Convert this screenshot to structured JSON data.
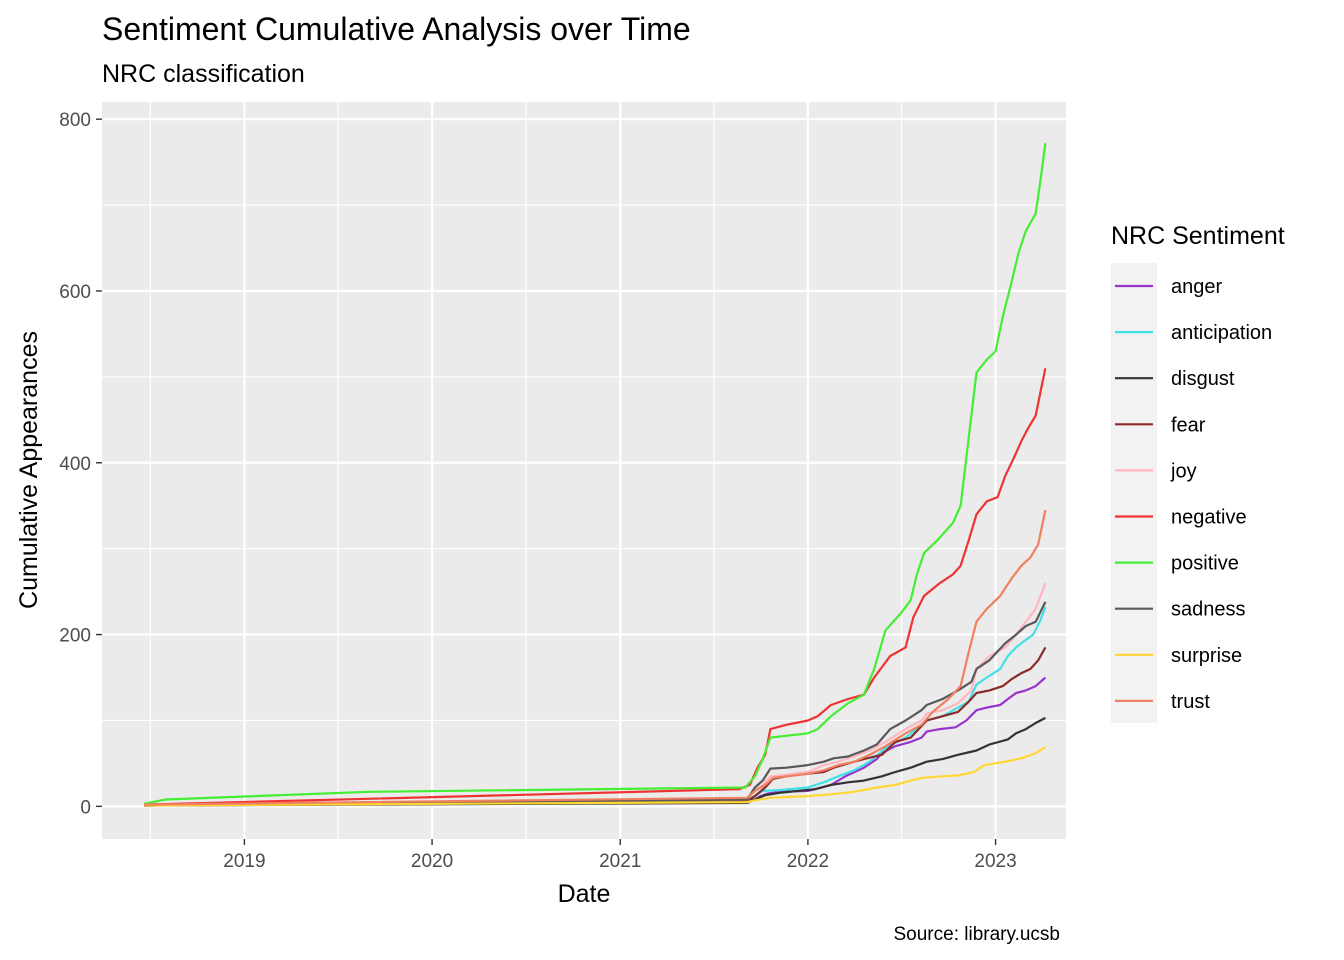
{
  "chart_data": {
    "type": "line",
    "title": "Sentiment Cumulative Analysis over Time",
    "subtitle": "NRC classification",
    "xlabel": "Date",
    "ylabel": "Cumulative Appearances",
    "caption": "Source: library.ucsb",
    "legend_title": "NRC Sentiment",
    "legend_position": "right",
    "grid": true,
    "x_type": "date",
    "xlim": [
      "2018-03-30",
      "2023-05-18"
    ],
    "ylim": [
      -38,
      820
    ],
    "x_ticks": [
      "2019-01-01",
      "2020-01-01",
      "2021-01-01",
      "2022-01-01",
      "2023-01-01"
    ],
    "x_tick_labels": [
      "2019",
      "2020",
      "2021",
      "2022",
      "2023"
    ],
    "y_ticks": [
      0,
      200,
      400,
      600,
      800
    ],
    "y_tick_labels": [
      "0",
      "200",
      "400",
      "600",
      "800"
    ],
    "series": [
      {
        "name": "anger",
        "color": "#9932CC",
        "points": [
          [
            "2018-06-20",
            1
          ],
          [
            "2021-09-05",
            6
          ],
          [
            "2021-09-20",
            8
          ],
          [
            "2021-10-01",
            12
          ],
          [
            "2021-10-15",
            15
          ],
          [
            "2021-11-10",
            17
          ],
          [
            "2022-01-01",
            18
          ],
          [
            "2022-02-15",
            25
          ],
          [
            "2022-03-15",
            35
          ],
          [
            "2022-04-20",
            45
          ],
          [
            "2022-05-15",
            55
          ],
          [
            "2022-05-25",
            62
          ],
          [
            "2022-06-20",
            70
          ],
          [
            "2022-07-20",
            75
          ],
          [
            "2022-08-10",
            80
          ],
          [
            "2022-08-20",
            87
          ],
          [
            "2022-09-15",
            90
          ],
          [
            "2022-10-15",
            92
          ],
          [
            "2022-11-05",
            100
          ],
          [
            "2022-11-25",
            112
          ],
          [
            "2022-12-15",
            115
          ],
          [
            "2023-01-10",
            118
          ],
          [
            "2023-01-25",
            125
          ],
          [
            "2023-02-10",
            132
          ],
          [
            "2023-03-01",
            135
          ],
          [
            "2023-03-20",
            140
          ],
          [
            "2023-04-08",
            150
          ]
        ]
      },
      {
        "name": "anticipation",
        "color": "#40E0E8",
        "points": [
          [
            "2018-06-20",
            2
          ],
          [
            "2021-09-05",
            8
          ],
          [
            "2021-09-20",
            12
          ],
          [
            "2021-10-05",
            18
          ],
          [
            "2021-11-10",
            19
          ],
          [
            "2022-01-01",
            22
          ],
          [
            "2022-02-01",
            28
          ],
          [
            "2022-03-01",
            35
          ],
          [
            "2022-04-01",
            42
          ],
          [
            "2022-05-01",
            52
          ],
          [
            "2022-06-01",
            68
          ],
          [
            "2022-07-10",
            80
          ],
          [
            "2022-08-10",
            95
          ],
          [
            "2022-08-20",
            100
          ],
          [
            "2022-09-20",
            105
          ],
          [
            "2022-10-20",
            115
          ],
          [
            "2022-11-10",
            122
          ],
          [
            "2022-11-25",
            142
          ],
          [
            "2022-12-15",
            150
          ],
          [
            "2023-01-10",
            160
          ],
          [
            "2023-01-25",
            175
          ],
          [
            "2023-02-10",
            185
          ],
          [
            "2023-02-25",
            192
          ],
          [
            "2023-03-15",
            200
          ],
          [
            "2023-03-28",
            215
          ],
          [
            "2023-04-08",
            232
          ]
        ]
      },
      {
        "name": "disgust",
        "color": "#333333",
        "points": [
          [
            "2018-06-20",
            1
          ],
          [
            "2021-09-05",
            4
          ],
          [
            "2021-09-20",
            8
          ],
          [
            "2021-10-10",
            13
          ],
          [
            "2021-11-10",
            16
          ],
          [
            "2022-01-15",
            20
          ],
          [
            "2022-02-15",
            25
          ],
          [
            "2022-03-20",
            28
          ],
          [
            "2022-04-20",
            30
          ],
          [
            "2022-05-25",
            35
          ],
          [
            "2022-06-20",
            40
          ],
          [
            "2022-07-20",
            45
          ],
          [
            "2022-08-20",
            52
          ],
          [
            "2022-09-20",
            55
          ],
          [
            "2022-10-20",
            60
          ],
          [
            "2022-11-25",
            65
          ],
          [
            "2022-12-20",
            72
          ],
          [
            "2023-01-25",
            78
          ],
          [
            "2023-02-10",
            85
          ],
          [
            "2023-03-01",
            90
          ],
          [
            "2023-03-20",
            97
          ],
          [
            "2023-04-08",
            103
          ]
        ]
      },
      {
        "name": "fear",
        "color": "#8B2A2A",
        "points": [
          [
            "2018-06-20",
            1
          ],
          [
            "2021-09-05",
            6
          ],
          [
            "2021-09-20",
            12
          ],
          [
            "2021-10-10",
            22
          ],
          [
            "2021-10-25",
            32
          ],
          [
            "2021-11-20",
            35
          ],
          [
            "2022-01-01",
            38
          ],
          [
            "2022-02-01",
            40
          ],
          [
            "2022-02-20",
            45
          ],
          [
            "2022-03-20",
            50
          ],
          [
            "2022-04-20",
            55
          ],
          [
            "2022-05-25",
            60
          ],
          [
            "2022-06-20",
            75
          ],
          [
            "2022-07-20",
            80
          ],
          [
            "2022-08-20",
            100
          ],
          [
            "2022-09-20",
            105
          ],
          [
            "2022-10-20",
            110
          ],
          [
            "2022-11-10",
            122
          ],
          [
            "2022-11-25",
            132
          ],
          [
            "2022-12-20",
            135
          ],
          [
            "2023-01-15",
            140
          ],
          [
            "2023-02-01",
            148
          ],
          [
            "2023-02-20",
            155
          ],
          [
            "2023-03-10",
            160
          ],
          [
            "2023-03-25",
            170
          ],
          [
            "2023-04-08",
            185
          ]
        ]
      },
      {
        "name": "joy",
        "color": "#FFB6C1",
        "points": [
          [
            "2018-06-20",
            2
          ],
          [
            "2021-09-05",
            8
          ],
          [
            "2021-09-20",
            18
          ],
          [
            "2021-10-05",
            25
          ],
          [
            "2021-10-20",
            35
          ],
          [
            "2021-11-20",
            37
          ],
          [
            "2022-01-01",
            40
          ],
          [
            "2022-02-01",
            48
          ],
          [
            "2022-03-01",
            52
          ],
          [
            "2022-04-01",
            58
          ],
          [
            "2022-05-01",
            65
          ],
          [
            "2022-06-01",
            75
          ],
          [
            "2022-07-10",
            90
          ],
          [
            "2022-08-10",
            100
          ],
          [
            "2022-08-20",
            108
          ],
          [
            "2022-09-20",
            112
          ],
          [
            "2022-10-20",
            120
          ],
          [
            "2022-11-15",
            135
          ],
          [
            "2022-11-25",
            160
          ],
          [
            "2022-12-20",
            175
          ],
          [
            "2023-01-20",
            185
          ],
          [
            "2023-02-10",
            200
          ],
          [
            "2023-03-01",
            215
          ],
          [
            "2023-03-20",
            230
          ],
          [
            "2023-04-08",
            260
          ]
        ]
      },
      {
        "name": "negative",
        "color": "#EE3333",
        "points": [
          [
            "2018-06-20",
            2
          ],
          [
            "2021-08-20",
            20
          ],
          [
            "2021-09-10",
            25
          ],
          [
            "2021-09-25",
            45
          ],
          [
            "2021-10-10",
            60
          ],
          [
            "2021-10-20",
            90
          ],
          [
            "2021-11-20",
            95
          ],
          [
            "2022-01-01",
            100
          ],
          [
            "2022-01-20",
            105
          ],
          [
            "2022-02-15",
            118
          ],
          [
            "2022-03-20",
            125
          ],
          [
            "2022-04-20",
            130
          ],
          [
            "2022-05-10",
            150
          ],
          [
            "2022-06-10",
            175
          ],
          [
            "2022-07-10",
            185
          ],
          [
            "2022-07-25",
            220
          ],
          [
            "2022-08-15",
            245
          ],
          [
            "2022-09-15",
            260
          ],
          [
            "2022-10-10",
            270
          ],
          [
            "2022-10-25",
            280
          ],
          [
            "2022-11-10",
            310
          ],
          [
            "2022-11-25",
            340
          ],
          [
            "2022-12-15",
            355
          ],
          [
            "2023-01-05",
            360
          ],
          [
            "2023-01-20",
            385
          ],
          [
            "2023-02-05",
            405
          ],
          [
            "2023-02-20",
            425
          ],
          [
            "2023-03-05",
            440
          ],
          [
            "2023-03-20",
            455
          ],
          [
            "2023-04-01",
            490
          ],
          [
            "2023-04-08",
            510
          ]
        ]
      },
      {
        "name": "positive",
        "color": "#44EE33",
        "points": [
          [
            "2018-06-20",
            3
          ],
          [
            "2018-08-01",
            8
          ],
          [
            "2019-09-01",
            17
          ],
          [
            "2021-09-01",
            22
          ],
          [
            "2021-09-20",
            35
          ],
          [
            "2021-10-05",
            55
          ],
          [
            "2021-10-20",
            80
          ],
          [
            "2022-01-01",
            85
          ],
          [
            "2022-01-20",
            90
          ],
          [
            "2022-02-15",
            105
          ],
          [
            "2022-03-20",
            120
          ],
          [
            "2022-04-20",
            130
          ],
          [
            "2022-05-10",
            160
          ],
          [
            "2022-06-01",
            205
          ],
          [
            "2022-07-01",
            225
          ],
          [
            "2022-07-20",
            240
          ],
          [
            "2022-08-01",
            270
          ],
          [
            "2022-08-15",
            295
          ],
          [
            "2022-09-10",
            310
          ],
          [
            "2022-10-10",
            330
          ],
          [
            "2022-10-25",
            350
          ],
          [
            "2022-11-10",
            430
          ],
          [
            "2022-11-25",
            505
          ],
          [
            "2022-12-15",
            520
          ],
          [
            "2023-01-01",
            530
          ],
          [
            "2023-01-15",
            570
          ],
          [
            "2023-02-01",
            610
          ],
          [
            "2023-02-15",
            645
          ],
          [
            "2023-03-01",
            670
          ],
          [
            "2023-03-20",
            690
          ],
          [
            "2023-04-01",
            740
          ],
          [
            "2023-04-08",
            772
          ]
        ]
      },
      {
        "name": "sadness",
        "color": "#595959",
        "points": [
          [
            "2018-06-20",
            1
          ],
          [
            "2021-09-05",
            8
          ],
          [
            "2021-09-20",
            22
          ],
          [
            "2021-10-05",
            30
          ],
          [
            "2021-10-20",
            44
          ],
          [
            "2021-11-20",
            45
          ],
          [
            "2022-01-01",
            48
          ],
          [
            "2022-02-01",
            52
          ],
          [
            "2022-02-20",
            56
          ],
          [
            "2022-03-20",
            58
          ],
          [
            "2022-04-20",
            65
          ],
          [
            "2022-05-15",
            72
          ],
          [
            "2022-06-10",
            90
          ],
          [
            "2022-07-10",
            100
          ],
          [
            "2022-08-10",
            112
          ],
          [
            "2022-08-20",
            118
          ],
          [
            "2022-09-20",
            125
          ],
          [
            "2022-10-20",
            135
          ],
          [
            "2022-11-15",
            145
          ],
          [
            "2022-11-25",
            160
          ],
          [
            "2022-12-20",
            170
          ],
          [
            "2023-01-20",
            190
          ],
          [
            "2023-02-10",
            200
          ],
          [
            "2023-03-01",
            210
          ],
          [
            "2023-03-20",
            215
          ],
          [
            "2023-04-08",
            238
          ]
        ]
      },
      {
        "name": "surprise",
        "color": "#FFD633",
        "points": [
          [
            "2018-06-20",
            1
          ],
          [
            "2021-09-05",
            5
          ],
          [
            "2021-09-20",
            7
          ],
          [
            "2021-10-20",
            10
          ],
          [
            "2022-01-01",
            12
          ],
          [
            "2022-02-15",
            14
          ],
          [
            "2022-04-01",
            17
          ],
          [
            "2022-05-15",
            22
          ],
          [
            "2022-06-20",
            25
          ],
          [
            "2022-07-20",
            30
          ],
          [
            "2022-08-10",
            33
          ],
          [
            "2022-09-20",
            35
          ],
          [
            "2022-10-20",
            36
          ],
          [
            "2022-11-20",
            40
          ],
          [
            "2022-12-10",
            48
          ],
          [
            "2023-01-20",
            52
          ],
          [
            "2023-02-20",
            56
          ],
          [
            "2023-03-20",
            62
          ],
          [
            "2023-04-08",
            69
          ]
        ]
      },
      {
        "name": "trust",
        "color": "#F08060",
        "points": [
          [
            "2018-06-20",
            2
          ],
          [
            "2021-09-05",
            10
          ],
          [
            "2021-09-20",
            18
          ],
          [
            "2021-10-10",
            25
          ],
          [
            "2021-10-25",
            33
          ],
          [
            "2021-11-20",
            35
          ],
          [
            "2022-01-01",
            38
          ],
          [
            "2022-02-01",
            42
          ],
          [
            "2022-03-01",
            48
          ],
          [
            "2022-04-01",
            52
          ],
          [
            "2022-05-01",
            60
          ],
          [
            "2022-06-01",
            70
          ],
          [
            "2022-07-10",
            85
          ],
          [
            "2022-08-10",
            95
          ],
          [
            "2022-09-01",
            110
          ],
          [
            "2022-10-01",
            125
          ],
          [
            "2022-10-25",
            140
          ],
          [
            "2022-11-10",
            180
          ],
          [
            "2022-11-25",
            215
          ],
          [
            "2022-12-15",
            230
          ],
          [
            "2023-01-10",
            245
          ],
          [
            "2023-02-01",
            265
          ],
          [
            "2023-02-20",
            280
          ],
          [
            "2023-03-10",
            290
          ],
          [
            "2023-03-25",
            305
          ],
          [
            "2023-04-08",
            345
          ]
        ]
      }
    ]
  }
}
